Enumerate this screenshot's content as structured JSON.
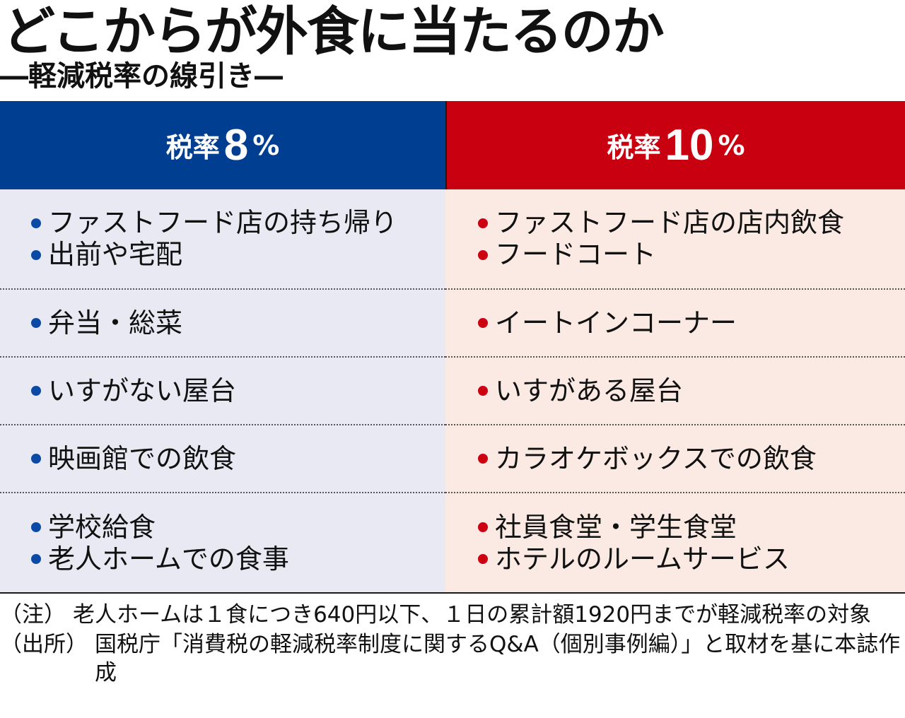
{
  "title": "どこからが外食に当たるのか",
  "subtitle": "―軽減税率の線引き―",
  "colors": {
    "low_rate_header": "#003e92",
    "high_rate_header": "#c9000f",
    "low_rate_bg": "#e9e9f4",
    "high_rate_bg": "#fbeae3"
  },
  "headers": {
    "low": {
      "word": "税率",
      "num": "8",
      "pct": "%"
    },
    "high": {
      "word": "税率",
      "num": "10",
      "pct": "%"
    }
  },
  "rows": [
    {
      "low": [
        "ファストフード店の持ち帰り",
        "出前や宅配"
      ],
      "high": [
        "ファストフード店の店内飲食",
        "フードコート"
      ]
    },
    {
      "low": [
        "弁当・総菜"
      ],
      "high": [
        "イートインコーナー"
      ]
    },
    {
      "low": [
        "いすがない屋台"
      ],
      "high": [
        "いすがある屋台"
      ]
    },
    {
      "low": [
        "映画館での飲食"
      ],
      "high": [
        "カラオケボックスでの飲食"
      ]
    },
    {
      "low": [
        "学校給食",
        "老人ホームでの食事"
      ],
      "high": [
        "社員食堂・学生食堂",
        "ホテルのルームサービス"
      ]
    }
  ],
  "notes": [
    {
      "label": "（注）",
      "text": "老人ホームは１食につき640円以下、１日の累計額1920円までが軽減税率の対象"
    },
    {
      "label": "（出所）",
      "text": "国税庁「消費税の軽減税率制度に関するQ&A（個別事例編）」と取材を基に本誌作成"
    }
  ]
}
